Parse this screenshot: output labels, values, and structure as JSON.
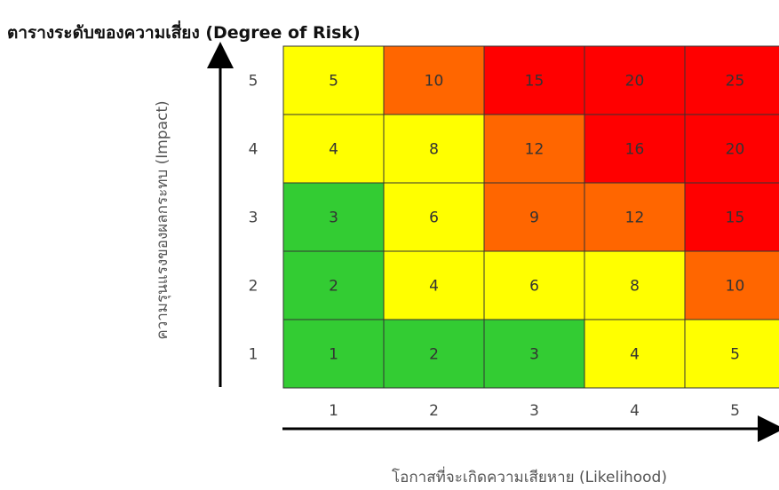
{
  "title": "ตารางระดับของความเสี่ยง (Degree of Risk)",
  "chart_data": {
    "type": "heatmap",
    "title": "ตารางระดับของความเสี่ยง (Degree of Risk)",
    "xlabel": "โอกาสที่จะเกิดความเสียหาย (Likelihood)",
    "ylabel": "ความรุนแรงของผลกระทบ (Impact)",
    "x_categories": [
      "1",
      "2",
      "3",
      "4",
      "5"
    ],
    "y_categories": [
      "5",
      "4",
      "3",
      "2",
      "1"
    ],
    "values": [
      [
        5,
        10,
        15,
        20,
        25
      ],
      [
        4,
        8,
        12,
        16,
        20
      ],
      [
        3,
        6,
        9,
        12,
        15
      ],
      [
        2,
        4,
        6,
        8,
        10
      ],
      [
        1,
        2,
        3,
        4,
        5
      ]
    ],
    "colors": [
      [
        "#ffff00",
        "#ff6600",
        "#ff0000",
        "#ff0000",
        "#ff0000"
      ],
      [
        "#ffff00",
        "#ffff00",
        "#ff6600",
        "#ff0000",
        "#ff0000"
      ],
      [
        "#33cc33",
        "#ffff00",
        "#ff6600",
        "#ff6600",
        "#ff0000"
      ],
      [
        "#33cc33",
        "#ffff00",
        "#ffff00",
        "#ffff00",
        "#ff6600"
      ],
      [
        "#33cc33",
        "#33cc33",
        "#33cc33",
        "#ffff00",
        "#ffff00"
      ]
    ],
    "legend": "none"
  }
}
